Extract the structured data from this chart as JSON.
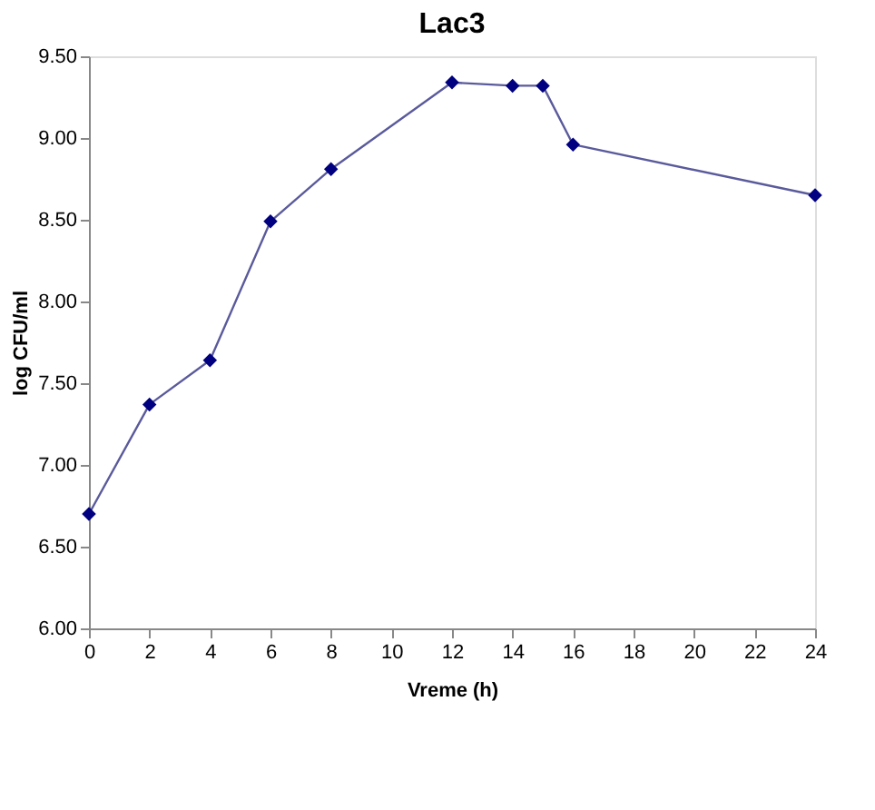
{
  "chart_data": {
    "type": "line",
    "title": "Lac3",
    "xlabel": "Vreme (h)",
    "ylabel": "log CFU/ml",
    "x": [
      0,
      2,
      4,
      6,
      8,
      12,
      14,
      15,
      16,
      24
    ],
    "series": [
      {
        "color": "#000080",
        "values": [
          6.7,
          7.37,
          7.64,
          8.49,
          8.81,
          9.34,
          9.32,
          9.32,
          8.96,
          8.65
        ]
      }
    ],
    "xlim": [
      0,
      24
    ],
    "xticks": [
      0,
      2,
      4,
      6,
      8,
      10,
      12,
      14,
      16,
      18,
      20,
      22,
      24
    ],
    "ylim": [
      6.0,
      9.5
    ],
    "yticks": [
      {
        "value": 6.0,
        "label": "6.00"
      },
      {
        "value": 6.5,
        "label": "6.50"
      },
      {
        "value": 7.0,
        "label": "7.00"
      },
      {
        "value": 7.5,
        "label": "7.50"
      },
      {
        "value": 8.0,
        "label": "8.00"
      },
      {
        "value": 8.5,
        "label": "8.50"
      },
      {
        "value": 9.0,
        "label": "9.00"
      },
      {
        "value": 9.5,
        "label": "9.50"
      }
    ],
    "marker": "diamond",
    "line_style": "solid",
    "grid": false
  }
}
